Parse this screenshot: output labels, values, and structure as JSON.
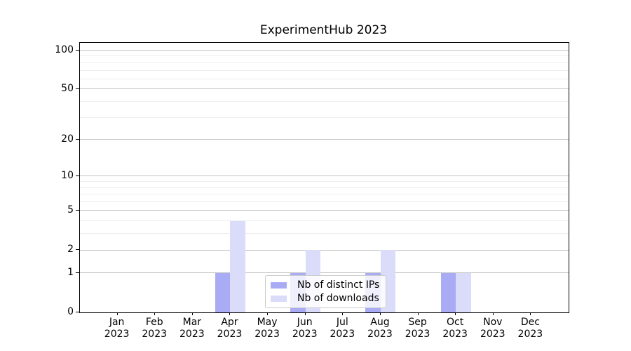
{
  "chart_data": {
    "type": "bar",
    "title": "ExperimentHub 2023",
    "categories": [
      "Jan",
      "Feb",
      "Mar",
      "Apr",
      "May",
      "Jun",
      "Jul",
      "Aug",
      "Sep",
      "Oct",
      "Nov",
      "Dec"
    ],
    "year": "2023",
    "series": [
      {
        "name": "Nb of distinct IPs",
        "color": "#a9abf5",
        "values": [
          0,
          0,
          0,
          1,
          0,
          1,
          0,
          1,
          0,
          1,
          0,
          0
        ]
      },
      {
        "name": "Nb of downloads",
        "color": "#dadcf9",
        "values": [
          0,
          0,
          0,
          4,
          0,
          2,
          0,
          2,
          0,
          1,
          0,
          0
        ]
      }
    ],
    "scale": "log1p",
    "y_ticks": [
      0,
      1,
      2,
      5,
      10,
      20,
      50,
      100
    ],
    "y_minor_gridlines": [
      3,
      4,
      6,
      7,
      8,
      9,
      30,
      40,
      60,
      70,
      80,
      90
    ],
    "ylim": [
      0,
      114
    ],
    "xlabel": "",
    "ylabel": "",
    "grid": true,
    "legend_position": "lower center"
  }
}
